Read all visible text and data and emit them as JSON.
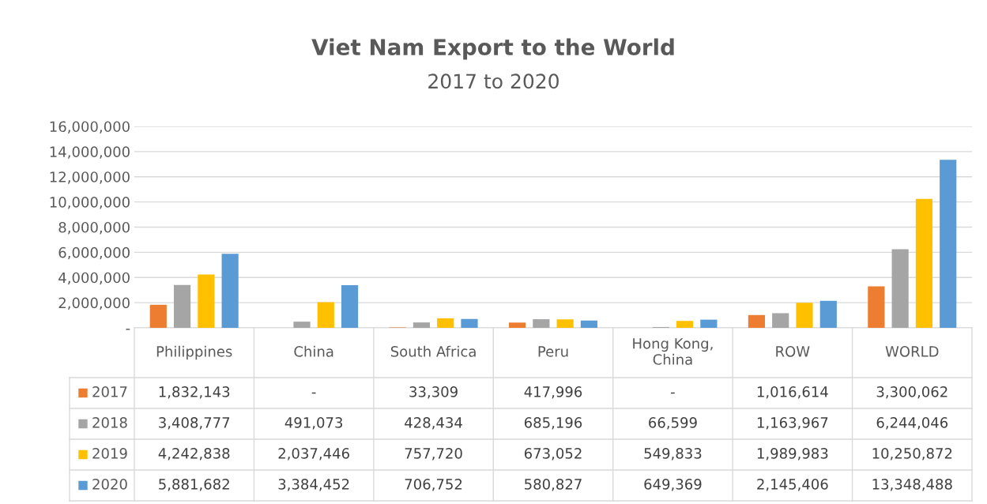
{
  "chart_data": {
    "type": "bar",
    "title": "Viet Nam Export to the World",
    "subtitle": "2017 to 2020",
    "categories": [
      "Philippines",
      "China",
      "South Africa",
      "Peru",
      "Hong Kong, China",
      "ROW",
      "WORLD"
    ],
    "series": [
      {
        "name": "2017",
        "color": "#ed7d31",
        "values": [
          1832143,
          0,
          33309,
          417996,
          0,
          1016614,
          3300062
        ],
        "value_labels": [
          "1,832,143",
          "-",
          "33,309",
          "417,996",
          "-",
          "1,016,614",
          "3,300,062"
        ]
      },
      {
        "name": "2018",
        "color": "#a5a5a5",
        "values": [
          3408777,
          491073,
          428434,
          685196,
          66599,
          1163967,
          6244046
        ],
        "value_labels": [
          "3,408,777",
          "491,073",
          "428,434",
          "685,196",
          "66,599",
          "1,163,967",
          "6,244,046"
        ]
      },
      {
        "name": "2019",
        "color": "#ffc000",
        "values": [
          4242838,
          2037446,
          757720,
          673052,
          549833,
          1989983,
          10250872
        ],
        "value_labels": [
          "4,242,838",
          "2,037,446",
          "757,720",
          "673,052",
          "549,833",
          "1,989,983",
          "10,250,872"
        ]
      },
      {
        "name": "2020",
        "color": "#5b9bd5",
        "values": [
          5881682,
          3384452,
          706752,
          580827,
          649369,
          2145406,
          13348488
        ],
        "value_labels": [
          "5,881,682",
          "3,384,452",
          "706,752",
          "580,827",
          "649,369",
          "2,145,406",
          "13,348,488"
        ]
      }
    ],
    "ylim": [
      0,
      16000000
    ],
    "yticks": [
      {
        "value": 0,
        "label": "-"
      },
      {
        "value": 2000000,
        "label": "2,000,000"
      },
      {
        "value": 4000000,
        "label": "4,000,000"
      },
      {
        "value": 6000000,
        "label": "6,000,000"
      },
      {
        "value": 8000000,
        "label": "8,000,000"
      },
      {
        "value": 10000000,
        "label": "10,000,000"
      },
      {
        "value": 12000000,
        "label": "12,000,000"
      },
      {
        "value": 14000000,
        "label": "14,000,000"
      },
      {
        "value": 16000000,
        "label": "16,000,000"
      }
    ],
    "grid": "y",
    "legend": "bottom"
  }
}
